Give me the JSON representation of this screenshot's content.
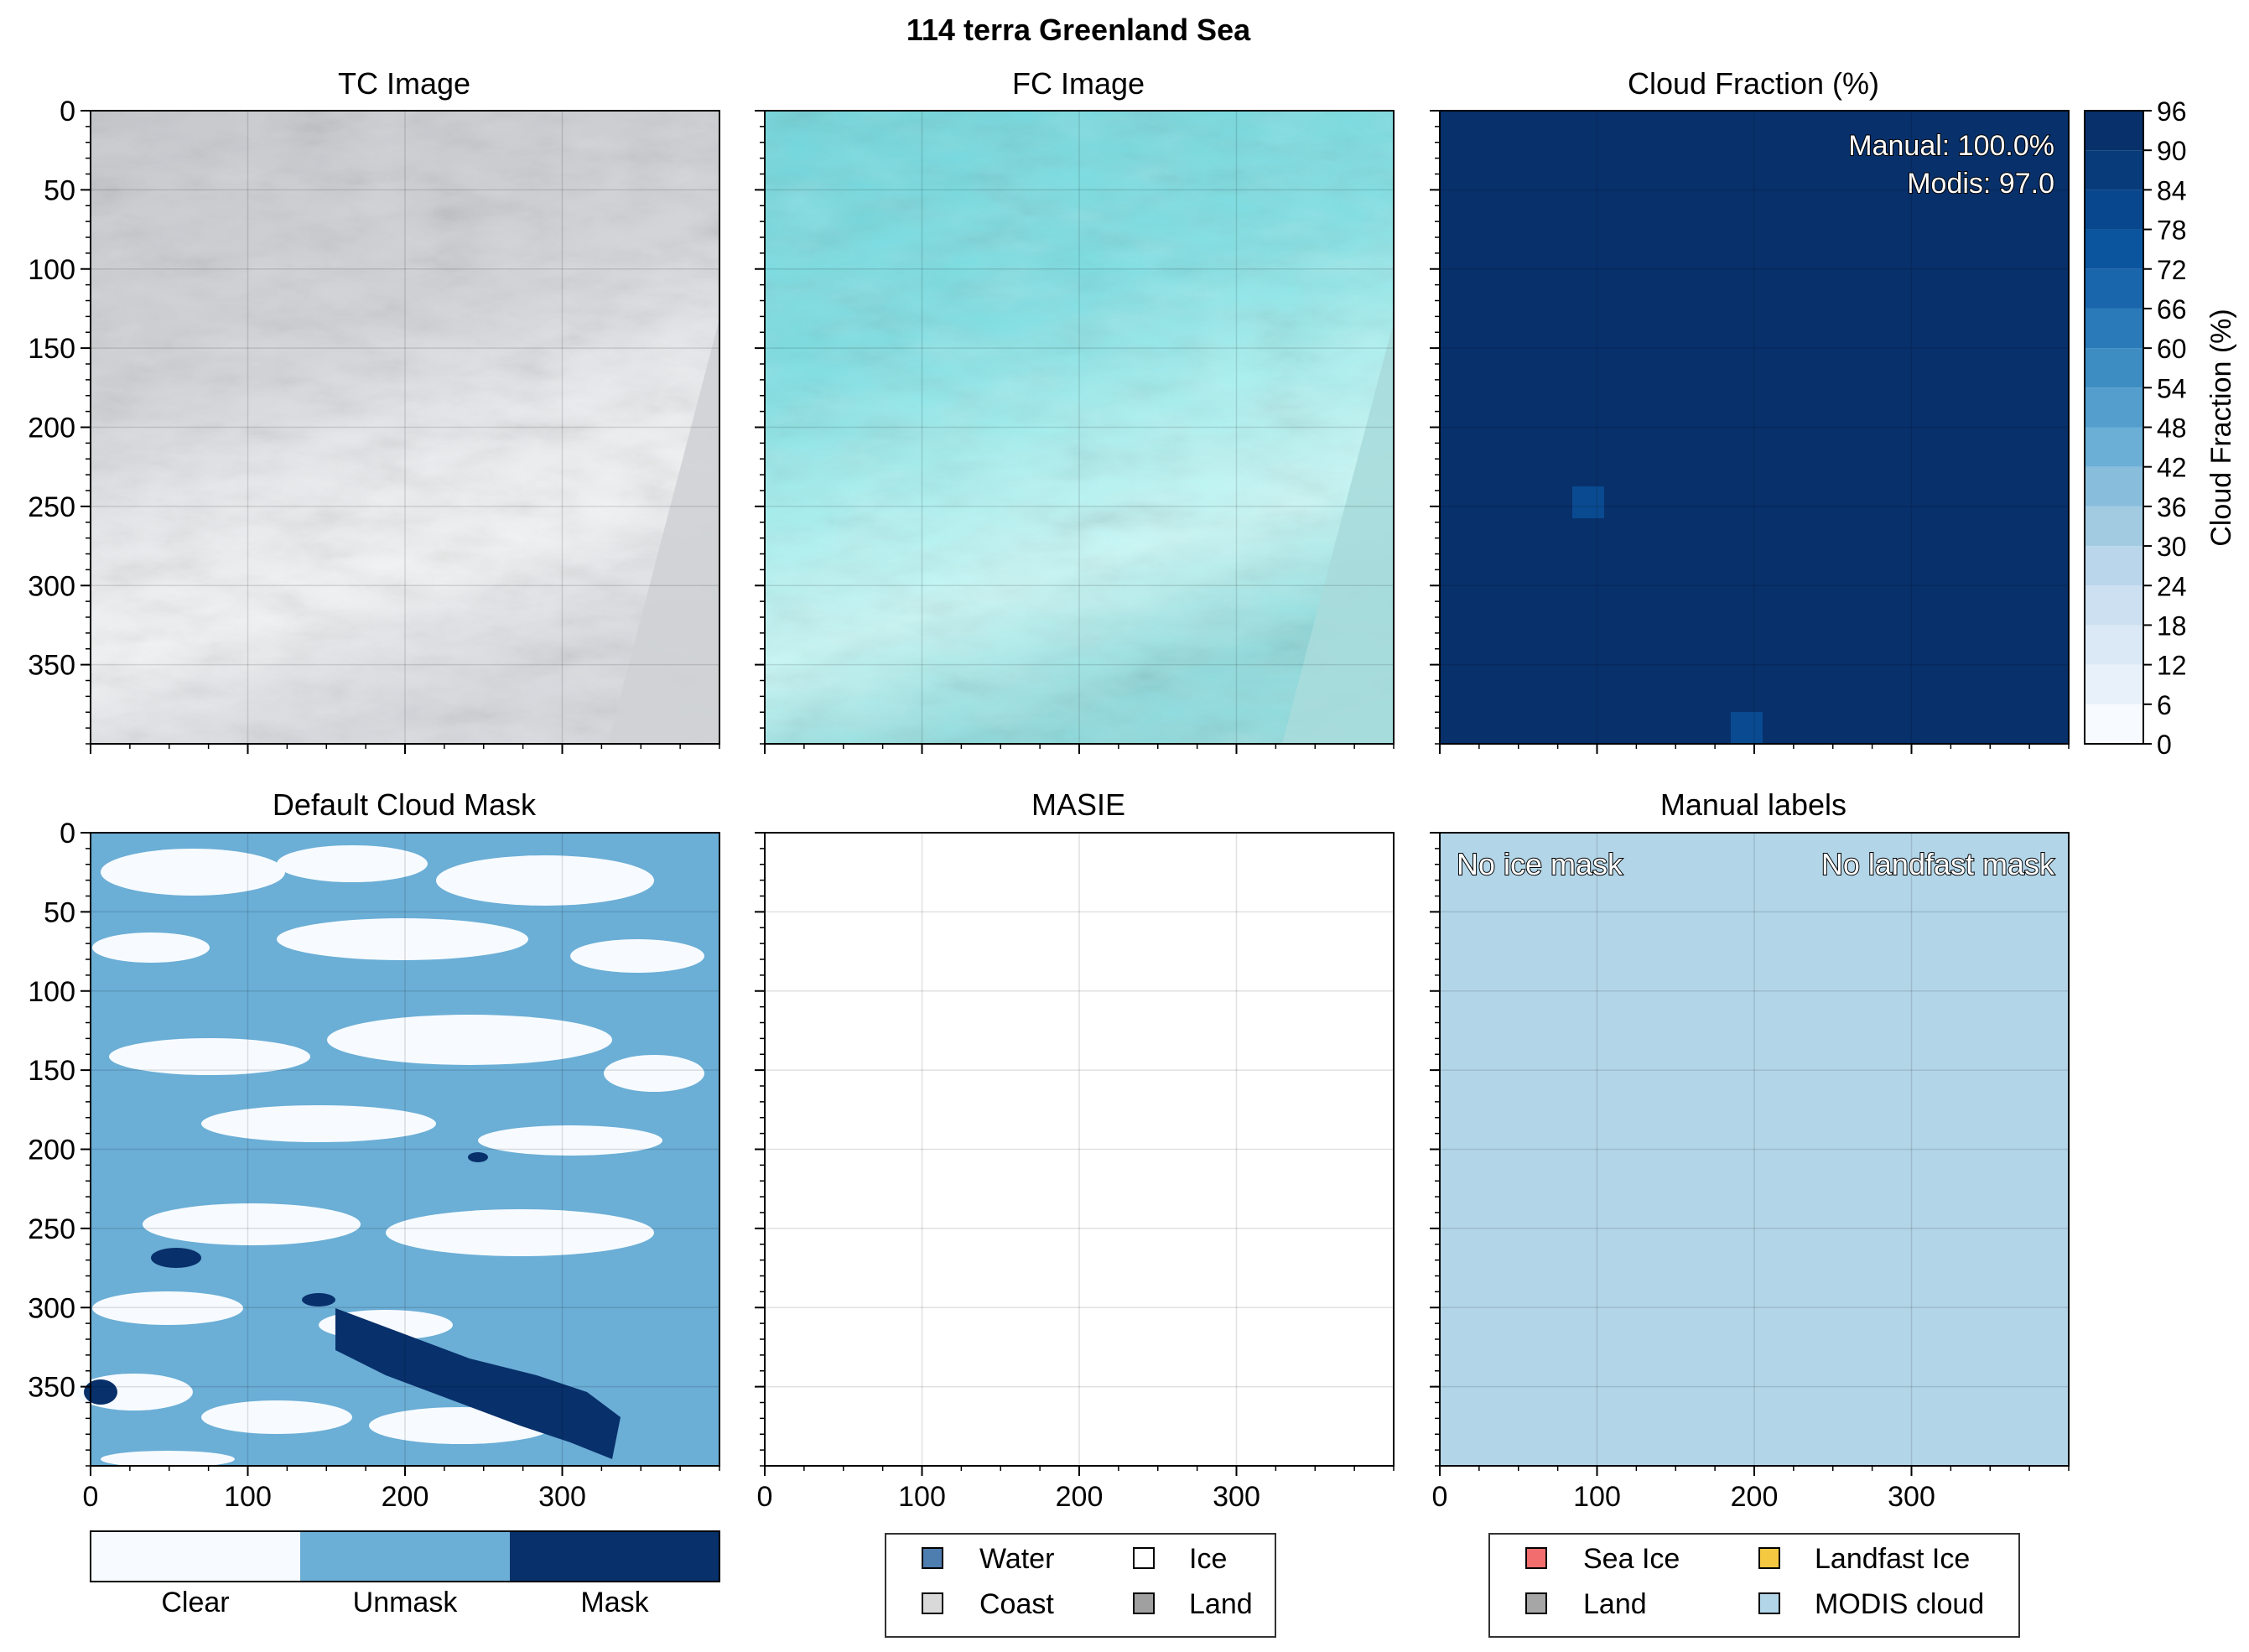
{
  "figure": {
    "title": "114 terra Greenland Sea"
  },
  "panels": {
    "tc": {
      "title": "TC Image"
    },
    "fc": {
      "title": "FC Image"
    },
    "cf": {
      "title": "Cloud Fraction (%)",
      "annotation_manual": "Manual: 100.0%",
      "annotation_modis": "Modis: 97.0"
    },
    "dcm": {
      "title": "Default Cloud Mask"
    },
    "masie": {
      "title": "MASIE"
    },
    "ml": {
      "title": "Manual labels",
      "note_left": "No ice mask",
      "note_right": "No landfast mask"
    }
  },
  "axes": {
    "x_ticks": [
      "0",
      "100",
      "200",
      "300"
    ],
    "y_ticks": [
      "0",
      "50",
      "100",
      "150",
      "200",
      "250",
      "300",
      "350"
    ]
  },
  "colorbar": {
    "label": "Cloud Fraction (%)",
    "ticks": [
      "0",
      "6",
      "12",
      "18",
      "24",
      "30",
      "36",
      "42",
      "48",
      "54",
      "60",
      "66",
      "72",
      "78",
      "84",
      "90",
      "96"
    ]
  },
  "cloud_mask_colorbar": {
    "labels": [
      "Clear",
      "Unmask",
      "Mask"
    ],
    "colors": [
      "#f7fbff",
      "#6baed6",
      "#08306b"
    ]
  },
  "legend_masie": {
    "items": [
      {
        "label": "Water",
        "color": "#4e7db0"
      },
      {
        "label": "Ice",
        "color": "#ffffff"
      },
      {
        "label": "Coast",
        "color": "#d9d9d9"
      },
      {
        "label": "Land",
        "color": "#a0a0a0"
      }
    ]
  },
  "legend_manual": {
    "items": [
      {
        "label": "Sea Ice",
        "color": "#f26d6d"
      },
      {
        "label": "Landfast Ice",
        "color": "#f5c842"
      },
      {
        "label": "Land",
        "color": "#a6a6a6"
      },
      {
        "label": "MODIS cloud",
        "color": "#b3d5e8"
      }
    ]
  },
  "chart_data": {
    "type": "heatmap",
    "image_extent": {
      "x": [
        0,
        400
      ],
      "y": [
        0,
        400
      ]
    },
    "cloud_fraction": {
      "base_value": 100.0,
      "cell_values": [
        90,
        90
      ],
      "manual_percent": 100.0,
      "modis_value": 97.0,
      "vmin": 0,
      "vmax": 96
    },
    "masie": "empty",
    "manual_labels": "MODIS cloud only"
  }
}
